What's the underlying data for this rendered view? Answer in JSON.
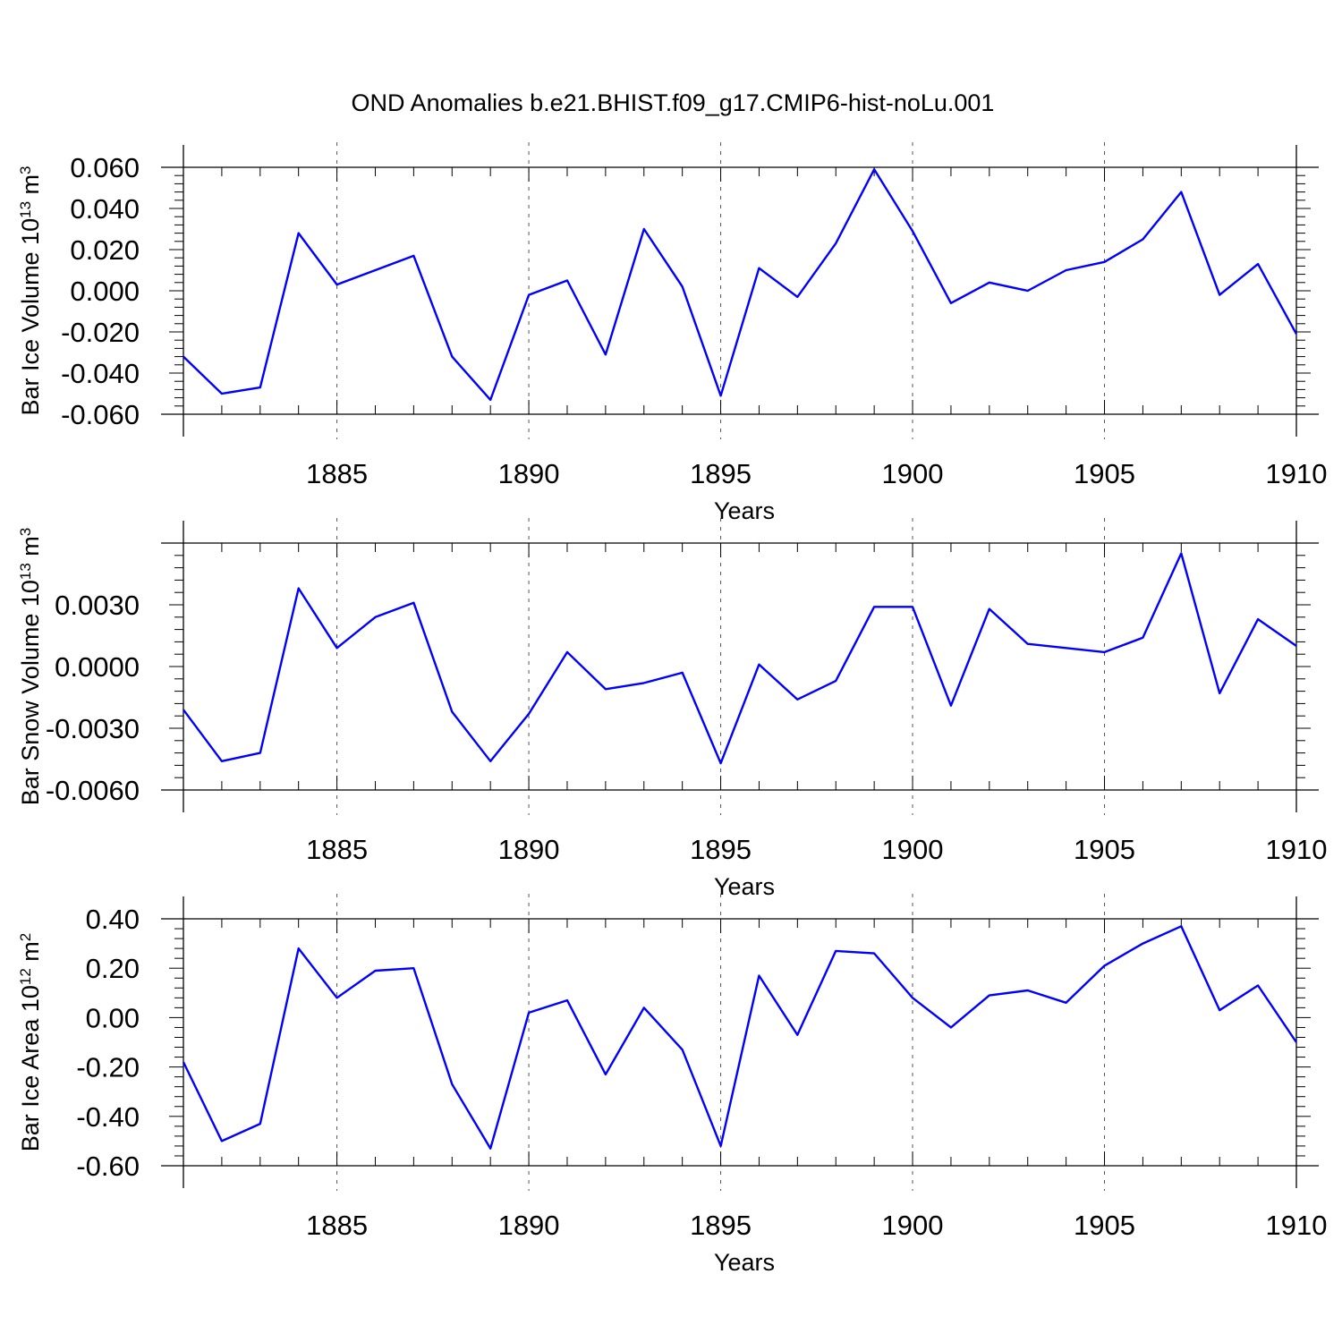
{
  "title": "OND Anomalies b.e21.BHIST.f09_g17.CMIP6-hist-noLu.001",
  "colors": {
    "series": "#0000ff",
    "axis": "#000000",
    "grid": "#555555"
  },
  "chart_data": [
    {
      "type": "line",
      "xlabel": "Years",
      "ylabel_main": "Bar Ice Volume 10",
      "ylabel_exp": "13",
      "ylabel_unit": " m",
      "ylabel_unit_exp": "3",
      "xlim": [
        1881,
        1910
      ],
      "ylim": [
        -0.06,
        0.06
      ],
      "x_ticks": [
        1885,
        1890,
        1895,
        1900,
        1905,
        1910
      ],
      "x_tick_labels": [
        "1885",
        "1890",
        "1895",
        "1900",
        "1905",
        "1910"
      ],
      "y_ticks": [
        -0.06,
        -0.04,
        -0.02,
        0.0,
        0.02,
        0.04,
        0.06
      ],
      "y_tick_labels": [
        "-0.060",
        "-0.040",
        "-0.020",
        "0.000",
        "0.020",
        "0.040",
        "0.060"
      ],
      "grid": "vertical dashed at major x ticks",
      "x": [
        1881,
        1882,
        1883,
        1884,
        1885,
        1886,
        1887,
        1888,
        1889,
        1890,
        1891,
        1892,
        1893,
        1894,
        1895,
        1896,
        1897,
        1898,
        1899,
        1900,
        1901,
        1902,
        1903,
        1904,
        1905,
        1906,
        1907,
        1908,
        1909,
        1910
      ],
      "series": [
        {
          "values": [
            -0.032,
            -0.05,
            -0.047,
            0.028,
            0.003,
            0.01,
            0.017,
            -0.032,
            -0.053,
            -0.002,
            0.005,
            -0.031,
            0.03,
            0.002,
            -0.051,
            0.011,
            -0.003,
            0.023,
            0.059,
            0.029,
            -0.006,
            0.004,
            0.0,
            0.01,
            0.014,
            0.025,
            0.048,
            -0.002,
            0.013,
            -0.021
          ]
        }
      ]
    },
    {
      "type": "line",
      "xlabel": "Years",
      "ylabel_main": "Bar Snow Volume 10",
      "ylabel_exp": "13",
      "ylabel_unit": " m",
      "ylabel_unit_exp": "3",
      "xlim": [
        1881,
        1910
      ],
      "ylim": [
        -0.006,
        0.006
      ],
      "x_ticks": [
        1885,
        1890,
        1895,
        1900,
        1905,
        1910
      ],
      "x_tick_labels": [
        "1885",
        "1890",
        "1895",
        "1900",
        "1905",
        "1910"
      ],
      "y_ticks": [
        -0.006,
        -0.003,
        0.0,
        0.003
      ],
      "y_tick_labels": [
        "-0.0060",
        "-0.0030",
        "0.0000",
        "0.0030"
      ],
      "grid": "vertical dashed at major x ticks",
      "x": [
        1881,
        1882,
        1883,
        1884,
        1885,
        1886,
        1887,
        1888,
        1889,
        1890,
        1891,
        1892,
        1893,
        1894,
        1895,
        1896,
        1897,
        1898,
        1899,
        1900,
        1901,
        1902,
        1903,
        1904,
        1905,
        1906,
        1907,
        1908,
        1909,
        1910
      ],
      "series": [
        {
          "values": [
            -0.0021,
            -0.0046,
            -0.0042,
            0.0038,
            0.0009,
            0.0024,
            0.0031,
            -0.0022,
            -0.0046,
            -0.0023,
            0.0007,
            -0.0011,
            -0.0008,
            -0.0003,
            -0.0047,
            0.0001,
            -0.0016,
            -0.0007,
            0.0029,
            0.0029,
            -0.0019,
            0.0028,
            0.0011,
            0.0009,
            0.0007,
            0.0014,
            0.0055,
            -0.0013,
            0.0023,
            0.001
          ]
        }
      ]
    },
    {
      "type": "line",
      "xlabel": "Years",
      "ylabel_main": "Bar Ice Area 10",
      "ylabel_exp": "12",
      "ylabel_unit": " m",
      "ylabel_unit_exp": "2",
      "xlim": [
        1881,
        1910
      ],
      "ylim": [
        -0.6,
        0.4
      ],
      "x_ticks": [
        1885,
        1890,
        1895,
        1900,
        1905,
        1910
      ],
      "x_tick_labels": [
        "1885",
        "1890",
        "1895",
        "1900",
        "1905",
        "1910"
      ],
      "y_ticks": [
        -0.6,
        -0.4,
        -0.2,
        0.0,
        0.2,
        0.4
      ],
      "y_tick_labels": [
        "-0.60",
        "-0.40",
        "-0.20",
        "0.00",
        "0.20",
        "0.40"
      ],
      "grid": "vertical dashed at major x ticks",
      "x": [
        1881,
        1882,
        1883,
        1884,
        1885,
        1886,
        1887,
        1888,
        1889,
        1890,
        1891,
        1892,
        1893,
        1894,
        1895,
        1896,
        1897,
        1898,
        1899,
        1900,
        1901,
        1902,
        1903,
        1904,
        1905,
        1906,
        1907,
        1908,
        1909,
        1910
      ],
      "series": [
        {
          "values": [
            -0.18,
            -0.5,
            -0.43,
            0.28,
            0.08,
            0.19,
            0.2,
            -0.27,
            -0.53,
            0.02,
            0.07,
            -0.23,
            0.04,
            -0.13,
            -0.52,
            0.17,
            -0.07,
            0.27,
            0.26,
            0.08,
            -0.04,
            0.09,
            0.11,
            0.06,
            0.21,
            0.3,
            0.37,
            0.03,
            0.13,
            -0.1
          ]
        }
      ]
    }
  ]
}
